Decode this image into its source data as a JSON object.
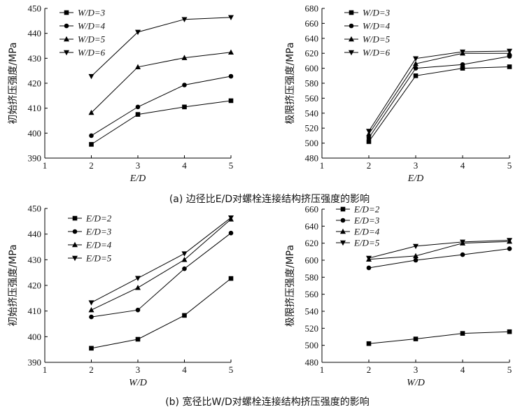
{
  "captions": {
    "a": "(a) 边径比E/D对螺栓连接结构挤压强度的影响",
    "b": "(b) 宽径比W/D对螺栓连接结构挤压强度的影响"
  },
  "chart_data": [
    {
      "id": "a-left",
      "type": "line",
      "xlabel": "E/D",
      "ylabel": "初始挤压强度/MPa",
      "xlim": [
        1,
        5
      ],
      "ylim": [
        390,
        450
      ],
      "xticks": [
        1,
        2,
        3,
        4,
        5
      ],
      "yticks": [
        390,
        400,
        410,
        420,
        430,
        440,
        450
      ],
      "x": [
        2,
        3,
        4,
        5
      ],
      "legend_position": "top-left",
      "series": [
        {
          "name": "W/D=3",
          "marker": "square",
          "values": [
            395.5,
            407.5,
            410.5,
            413
          ]
        },
        {
          "name": "W/D=4",
          "marker": "circle",
          "values": [
            399,
            410.5,
            419.3,
            422.8
          ]
        },
        {
          "name": "W/D=5",
          "marker": "triangle-up",
          "values": [
            408.2,
            426.5,
            430.2,
            432.4
          ]
        },
        {
          "name": "W/D=6",
          "marker": "triangle-down",
          "values": [
            422.8,
            440.5,
            445.6,
            446.4
          ]
        }
      ]
    },
    {
      "id": "a-right",
      "type": "line",
      "xlabel": "E/D",
      "ylabel": "极限挤压强度/MPa",
      "xlim": [
        1,
        5
      ],
      "ylim": [
        480,
        680
      ],
      "xticks": [
        1,
        2,
        3,
        4,
        5
      ],
      "yticks": [
        480,
        500,
        520,
        540,
        560,
        580,
        600,
        620,
        640,
        660,
        680
      ],
      "x": [
        2,
        3,
        4,
        5
      ],
      "legend_position": "top-left",
      "series": [
        {
          "name": "W/D=3",
          "marker": "square",
          "values": [
            502,
            590,
            600,
            602
          ]
        },
        {
          "name": "W/D=4",
          "marker": "circle",
          "values": [
            507,
            600,
            605,
            616
          ]
        },
        {
          "name": "W/D=5",
          "marker": "triangle-up",
          "values": [
            512,
            606,
            620,
            620
          ]
        },
        {
          "name": "W/D=6",
          "marker": "triangle-down",
          "values": [
            516,
            613,
            622,
            623
          ]
        }
      ]
    },
    {
      "id": "b-left",
      "type": "line",
      "xlabel": "W/D",
      "ylabel": "初始挤压强度/MPa",
      "xlim": [
        1,
        5
      ],
      "ylim": [
        390,
        450
      ],
      "xticks": [
        1,
        2,
        3,
        4,
        5
      ],
      "yticks": [
        390,
        400,
        410,
        420,
        430,
        440,
        450
      ],
      "x": [
        2,
        3,
        4,
        5
      ],
      "legend_position": "top-left",
      "series": [
        {
          "name": "E/D=2",
          "marker": "square",
          "values": [
            395.5,
            399,
            408.3,
            422.7
          ]
        },
        {
          "name": "E/D=3",
          "marker": "circle",
          "values": [
            407.7,
            410.4,
            426.5,
            440.4
          ]
        },
        {
          "name": "E/D=4",
          "marker": "triangle-up",
          "values": [
            410.4,
            419.1,
            430,
            445.8
          ]
        },
        {
          "name": "E/D=5",
          "marker": "triangle-down",
          "values": [
            413.3,
            422.8,
            432.4,
            446.4
          ]
        }
      ]
    },
    {
      "id": "b-right",
      "type": "line",
      "xlabel": "W/D",
      "ylabel": "极限挤压强度/MPa",
      "xlim": [
        1,
        5
      ],
      "ylim": [
        480,
        660
      ],
      "xticks": [
        1,
        2,
        3,
        4,
        5
      ],
      "yticks": [
        480,
        500,
        520,
        540,
        560,
        580,
        600,
        620,
        640,
        660
      ],
      "x": [
        2,
        3,
        4,
        5
      ],
      "legend_position": "top-left",
      "series": [
        {
          "name": "E/D=2",
          "marker": "square",
          "values": [
            502,
            507.5,
            514,
            516
          ]
        },
        {
          "name": "E/D=3",
          "marker": "circle",
          "values": [
            591,
            600,
            606.5,
            613.5
          ]
        },
        {
          "name": "E/D=4",
          "marker": "triangle-up",
          "values": [
            601,
            605,
            620,
            622
          ]
        },
        {
          "name": "E/D=5",
          "marker": "triangle-down",
          "values": [
            602.5,
            616.5,
            621.5,
            623.5
          ]
        }
      ]
    }
  ]
}
